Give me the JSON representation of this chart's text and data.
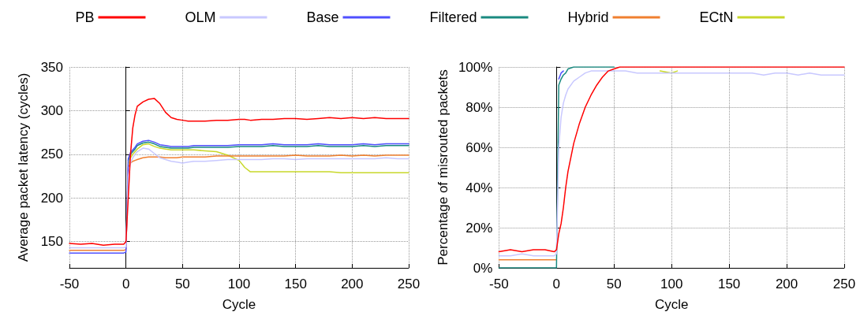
{
  "chart_data": [
    {
      "type": "line",
      "xlabel": "Cycle",
      "ylabel": "Average packet latency (cycles)",
      "x": [
        -50,
        -40,
        -30,
        -20,
        -10,
        -2,
        0,
        2,
        4,
        6,
        8,
        10,
        15,
        20,
        25,
        30,
        35,
        40,
        45,
        50,
        55,
        60,
        70,
        80,
        90,
        100,
        105,
        110,
        120,
        130,
        140,
        150,
        160,
        170,
        180,
        190,
        200,
        210,
        220,
        230,
        240,
        250
      ],
      "xlim": [
        -50,
        250
      ],
      "xticks": [
        -50,
        0,
        50,
        100,
        150,
        200,
        250
      ],
      "ylim": [
        120,
        350
      ],
      "yticks": [
        150,
        200,
        250,
        300,
        350
      ],
      "grid": true,
      "legend": "top",
      "marker": "none",
      "line_style": "solid",
      "series": [
        {
          "name": "PB",
          "color": "#ff0000",
          "values": [
            148,
            147,
            148,
            146,
            147,
            147,
            150,
            200,
            250,
            280,
            295,
            305,
            310,
            313,
            314,
            308,
            298,
            292,
            290,
            289,
            288,
            288,
            288,
            289,
            289,
            290,
            290,
            289,
            290,
            290,
            291,
            291,
            290,
            291,
            292,
            291,
            292,
            291,
            292,
            291,
            291,
            291
          ]
        },
        {
          "name": "OLM",
          "color": "#c8c8ff",
          "values": [
            143,
            143,
            143,
            143,
            143,
            143,
            144,
            225,
            240,
            246,
            250,
            253,
            257,
            256,
            251,
            246,
            244,
            242,
            241,
            240,
            241,
            242,
            242,
            243,
            244,
            244,
            244,
            244,
            244,
            245,
            245,
            244,
            245,
            245,
            245,
            245,
            245,
            245,
            245,
            246,
            245,
            245
          ]
        },
        {
          "name": "Base",
          "color": "#5050ff",
          "values": [
            137,
            137,
            137,
            137,
            137,
            137,
            138,
            245,
            252,
            255,
            258,
            262,
            265,
            266,
            264,
            261,
            260,
            259,
            259,
            259,
            259,
            260,
            260,
            260,
            260,
            261,
            261,
            261,
            261,
            262,
            261,
            261,
            261,
            262,
            261,
            261,
            261,
            262,
            261,
            262,
            262,
            262
          ]
        },
        {
          "name": "Filtered",
          "color": "#1a8a80",
          "values": [
            null,
            null,
            null,
            null,
            null,
            null,
            null,
            243,
            250,
            253,
            256,
            260,
            263,
            264,
            262,
            259,
            258,
            257,
            257,
            257,
            257,
            258,
            258,
            258,
            258,
            259,
            259,
            259,
            259,
            260,
            259,
            259,
            259,
            260,
            259,
            259,
            259,
            260,
            259,
            260,
            260,
            260
          ]
        },
        {
          "name": "Hybrid",
          "color": "#f08030",
          "values": [
            140,
            140,
            140,
            140,
            140,
            140,
            141,
            235,
            240,
            242,
            243,
            244,
            246,
            247,
            247,
            247,
            246,
            246,
            246,
            247,
            247,
            247,
            247,
            248,
            248,
            248,
            248,
            248,
            248,
            248,
            248,
            249,
            248,
            248,
            248,
            249,
            248,
            249,
            248,
            249,
            249,
            249
          ]
        },
        {
          "name": "ECtN",
          "color": "#c8d82a",
          "values": [
            null,
            null,
            null,
            null,
            null,
            null,
            null,
            238,
            246,
            250,
            253,
            256,
            261,
            262,
            259,
            257,
            256,
            255,
            255,
            255,
            255,
            255,
            254,
            253,
            249,
            243,
            235,
            230,
            230,
            230,
            230,
            230,
            230,
            230,
            230,
            229,
            229,
            229,
            229,
            229,
            229,
            229
          ]
        }
      ]
    },
    {
      "type": "line",
      "xlabel": "Cycle",
      "ylabel": "Percentage of misrouted packets",
      "x": [
        -50,
        -40,
        -30,
        -20,
        -10,
        -2,
        0,
        2,
        4,
        6,
        8,
        10,
        15,
        20,
        25,
        30,
        35,
        40,
        45,
        50,
        55,
        60,
        70,
        80,
        90,
        100,
        105,
        110,
        120,
        130,
        140,
        150,
        160,
        170,
        180,
        190,
        200,
        210,
        220,
        230,
        240,
        250
      ],
      "xlim": [
        -50,
        250
      ],
      "xticks": [
        -50,
        0,
        50,
        100,
        150,
        200,
        250
      ],
      "ylim": [
        0,
        100
      ],
      "yticks": [
        {
          "value": 0,
          "label": "0%"
        },
        {
          "value": 20,
          "label": "20%"
        },
        {
          "value": 40,
          "label": "40%"
        },
        {
          "value": 60,
          "label": "60%"
        },
        {
          "value": 80,
          "label": "80%"
        },
        {
          "value": 100,
          "label": "100%"
        }
      ],
      "grid": true,
      "marker": "none",
      "line_style": "solid",
      "series": [
        {
          "color": "#ff0000",
          "values": [
            8,
            9,
            8,
            9,
            9,
            8,
            9,
            17,
            22,
            30,
            40,
            48,
            62,
            72,
            80,
            86,
            91,
            95,
            98,
            99,
            100,
            100,
            100,
            100,
            100,
            100,
            100,
            100,
            100,
            100,
            100,
            100,
            100,
            100,
            100,
            100,
            100,
            100,
            100,
            100,
            100,
            100
          ]
        },
        {
          "color": "#c8c8ff",
          "values": [
            6,
            6,
            7,
            6,
            6,
            6,
            7,
            60,
            75,
            82,
            86,
            89,
            93,
            95,
            97,
            98,
            98,
            98,
            98,
            98,
            98,
            98,
            97,
            97,
            97,
            97,
            97,
            97,
            97,
            97,
            97,
            97,
            97,
            97,
            96,
            97,
            97,
            96,
            97,
            96,
            96,
            96
          ]
        },
        {
          "color": "#1a8a80",
          "values": [
            0,
            0,
            0,
            0,
            0,
            0,
            0,
            91,
            94,
            96,
            97,
            99,
            100,
            100,
            100,
            100,
            100,
            100,
            100,
            100,
            null,
            null,
            null,
            null,
            null,
            null,
            null,
            null,
            null,
            null,
            null,
            null,
            null,
            null,
            null,
            null,
            null,
            null,
            null,
            null,
            null,
            null
          ]
        },
        {
          "color": "#5050ff",
          "values": [
            null,
            null,
            null,
            null,
            null,
            null,
            null,
            94,
            97,
            98,
            null,
            null,
            null,
            null,
            null,
            null,
            null,
            null,
            null,
            null,
            null,
            null,
            null,
            null,
            null,
            null,
            null,
            null,
            null,
            null,
            null,
            null,
            null,
            null,
            null,
            null,
            null,
            null,
            null,
            null,
            null,
            null
          ]
        },
        {
          "color": "#f08030",
          "values": [
            4,
            4,
            4,
            4,
            4,
            4,
            4,
            null,
            null,
            null,
            null,
            null,
            null,
            null,
            null,
            null,
            null,
            null,
            null,
            null,
            null,
            null,
            null,
            null,
            null,
            null,
            null,
            null,
            null,
            null,
            null,
            null,
            null,
            null,
            null,
            null,
            null,
            null,
            null,
            null,
            null,
            null
          ]
        },
        {
          "color": "#c8d82a",
          "values": [
            null,
            null,
            null,
            null,
            null,
            null,
            null,
            null,
            null,
            null,
            null,
            null,
            null,
            null,
            null,
            null,
            null,
            null,
            null,
            null,
            null,
            null,
            null,
            null,
            98,
            97,
            98,
            null,
            null,
            null,
            null,
            null,
            null,
            null,
            null,
            null,
            null,
            null,
            null,
            null,
            null,
            null
          ]
        }
      ]
    }
  ]
}
